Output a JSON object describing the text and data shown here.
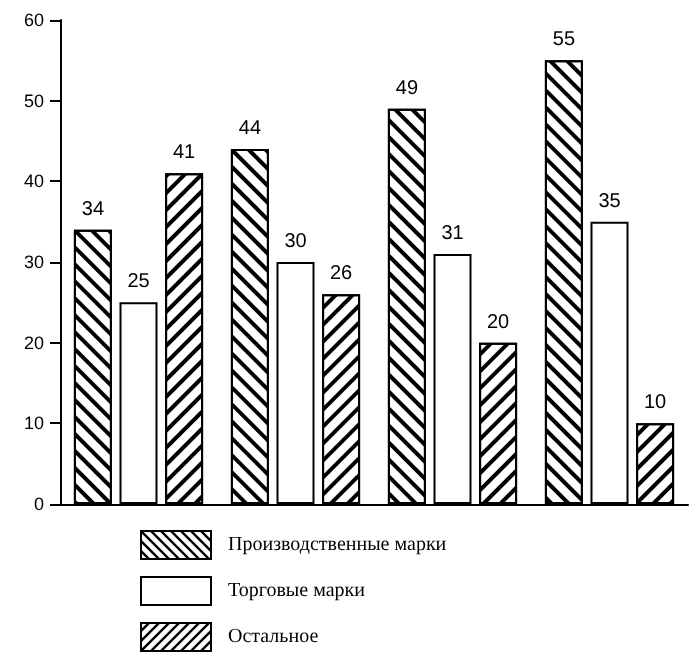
{
  "chart_data": {
    "type": "bar",
    "categories": [
      null,
      null,
      null,
      null
    ],
    "series": [
      {
        "name": "Производственные марки",
        "color": "#ffffff",
        "values": [
          34,
          44,
          49,
          55
        ]
      },
      {
        "name": "Торговые марки",
        "color": "#ffffff",
        "values": [
          25,
          30,
          31,
          35
        ]
      },
      {
        "name": "Остальное",
        "color": "#ffffff",
        "values": [
          41,
          26,
          20,
          10
        ]
      }
    ],
    "ylim": [
      0,
      60
    ],
    "yticks": [
      0,
      10,
      20,
      30,
      40,
      50,
      60
    ],
    "grid": false,
    "data_labels": true,
    "legend": "bottom"
  }
}
